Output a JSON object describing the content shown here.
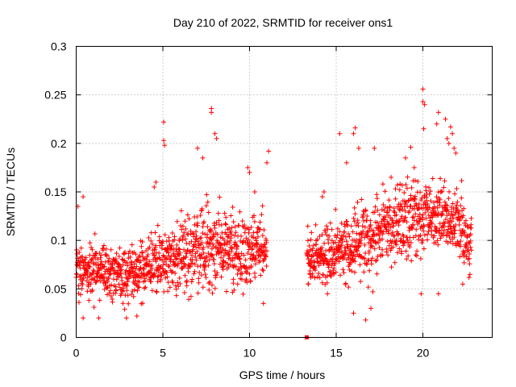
{
  "chart_data": {
    "type": "scatter",
    "title": "Day 210 of 2022, SRMTID for receiver ons1",
    "xlabel": "GPS time / hours",
    "ylabel": "SRMTID / TECUs",
    "xlim": [
      0,
      24
    ],
    "ylim": [
      0,
      0.3
    ],
    "xticks": [
      0,
      5,
      10,
      15,
      20
    ],
    "xtick_labels": [
      "0",
      "5",
      "10",
      "15",
      "20"
    ],
    "yticks": [
      0,
      0.05,
      0.1,
      0.15,
      0.2,
      0.25,
      0.3
    ],
    "ytick_labels": [
      "0",
      "0.05",
      "0.1",
      "0.15",
      "0.2",
      "0.25",
      "0.3"
    ],
    "grid": true,
    "marker": "plus",
    "series": [
      {
        "name": "SRMTID",
        "color": "#ff0000",
        "trend": [
          [
            0.0,
            0.068
          ],
          [
            1.0,
            0.07
          ],
          [
            2.0,
            0.068
          ],
          [
            3.0,
            0.063
          ],
          [
            4.0,
            0.074
          ],
          [
            5.0,
            0.08
          ],
          [
            6.0,
            0.085
          ],
          [
            7.0,
            0.09
          ],
          [
            8.0,
            0.095
          ],
          [
            9.0,
            0.088
          ],
          [
            10.0,
            0.09
          ],
          [
            11.0,
            0.09
          ],
          [
            13.3,
            0.08
          ],
          [
            14.0,
            0.082
          ],
          [
            15.0,
            0.09
          ],
          [
            16.0,
            0.1
          ],
          [
            17.0,
            0.096
          ],
          [
            18.0,
            0.11
          ],
          [
            19.0,
            0.12
          ],
          [
            20.0,
            0.125
          ],
          [
            21.0,
            0.132
          ],
          [
            22.0,
            0.118
          ],
          [
            22.8,
            0.095
          ]
        ],
        "spread": [
          [
            0.0,
            0.025
          ],
          [
            4.0,
            0.028
          ],
          [
            7.0,
            0.04
          ],
          [
            11.0,
            0.035
          ],
          [
            13.3,
            0.025
          ],
          [
            16.0,
            0.035
          ],
          [
            19.0,
            0.04
          ],
          [
            22.8,
            0.03
          ]
        ],
        "segments": [
          [
            0.0,
            11.0
          ],
          [
            13.3,
            22.8
          ]
        ],
        "samples_per_hour": 90,
        "outliers": [
          [
            0.1,
            0.135
          ],
          [
            0.4,
            0.145
          ],
          [
            5.05,
            0.222
          ],
          [
            5.05,
            0.203
          ],
          [
            5.1,
            0.198
          ],
          [
            7.0,
            0.195
          ],
          [
            7.3,
            0.185
          ],
          [
            7.8,
            0.232
          ],
          [
            7.8,
            0.236
          ],
          [
            8.0,
            0.21
          ],
          [
            8.1,
            0.205
          ],
          [
            9.9,
            0.175
          ],
          [
            10.0,
            0.17
          ],
          [
            10.3,
            0.15
          ],
          [
            10.8,
            0.035
          ],
          [
            11.1,
            0.192
          ],
          [
            11.0,
            0.18
          ],
          [
            4.6,
            0.16
          ],
          [
            4.5,
            0.155
          ],
          [
            1.3,
            0.02
          ],
          [
            0.4,
            0.02
          ],
          [
            2.9,
            0.02
          ],
          [
            3.5,
            0.022
          ],
          [
            15.6,
            0.18
          ],
          [
            16.0,
            0.21
          ],
          [
            16.1,
            0.216
          ],
          [
            16.3,
            0.195
          ],
          [
            16.0,
            0.025
          ],
          [
            16.7,
            0.018
          ],
          [
            17.0,
            0.03
          ],
          [
            14.3,
            0.15
          ],
          [
            14.2,
            0.145
          ],
          [
            20.0,
            0.256
          ],
          [
            20.0,
            0.243
          ],
          [
            20.1,
            0.24
          ],
          [
            20.05,
            0.215
          ],
          [
            20.9,
            0.232
          ],
          [
            20.8,
            0.22
          ],
          [
            21.3,
            0.225
          ],
          [
            21.6,
            0.217
          ],
          [
            21.7,
            0.21
          ],
          [
            21.4,
            0.205
          ],
          [
            21.5,
            0.2
          ],
          [
            21.8,
            0.195
          ],
          [
            21.9,
            0.19
          ],
          [
            19.3,
            0.196
          ],
          [
            19.0,
            0.185
          ],
          [
            19.5,
            0.175
          ],
          [
            19.9,
            0.045
          ],
          [
            20.9,
            0.045
          ],
          [
            22.3,
            0.055
          ],
          [
            22.8,
            0.09
          ],
          [
            22.7,
            0.105
          ],
          [
            13.4,
            0.055
          ],
          [
            13.5,
            0.065
          ],
          [
            15.2,
            0.21
          ],
          [
            17.2,
            0.195
          ]
        ],
        "zero_marker": [
          13.3,
          0.0
        ]
      }
    ]
  }
}
